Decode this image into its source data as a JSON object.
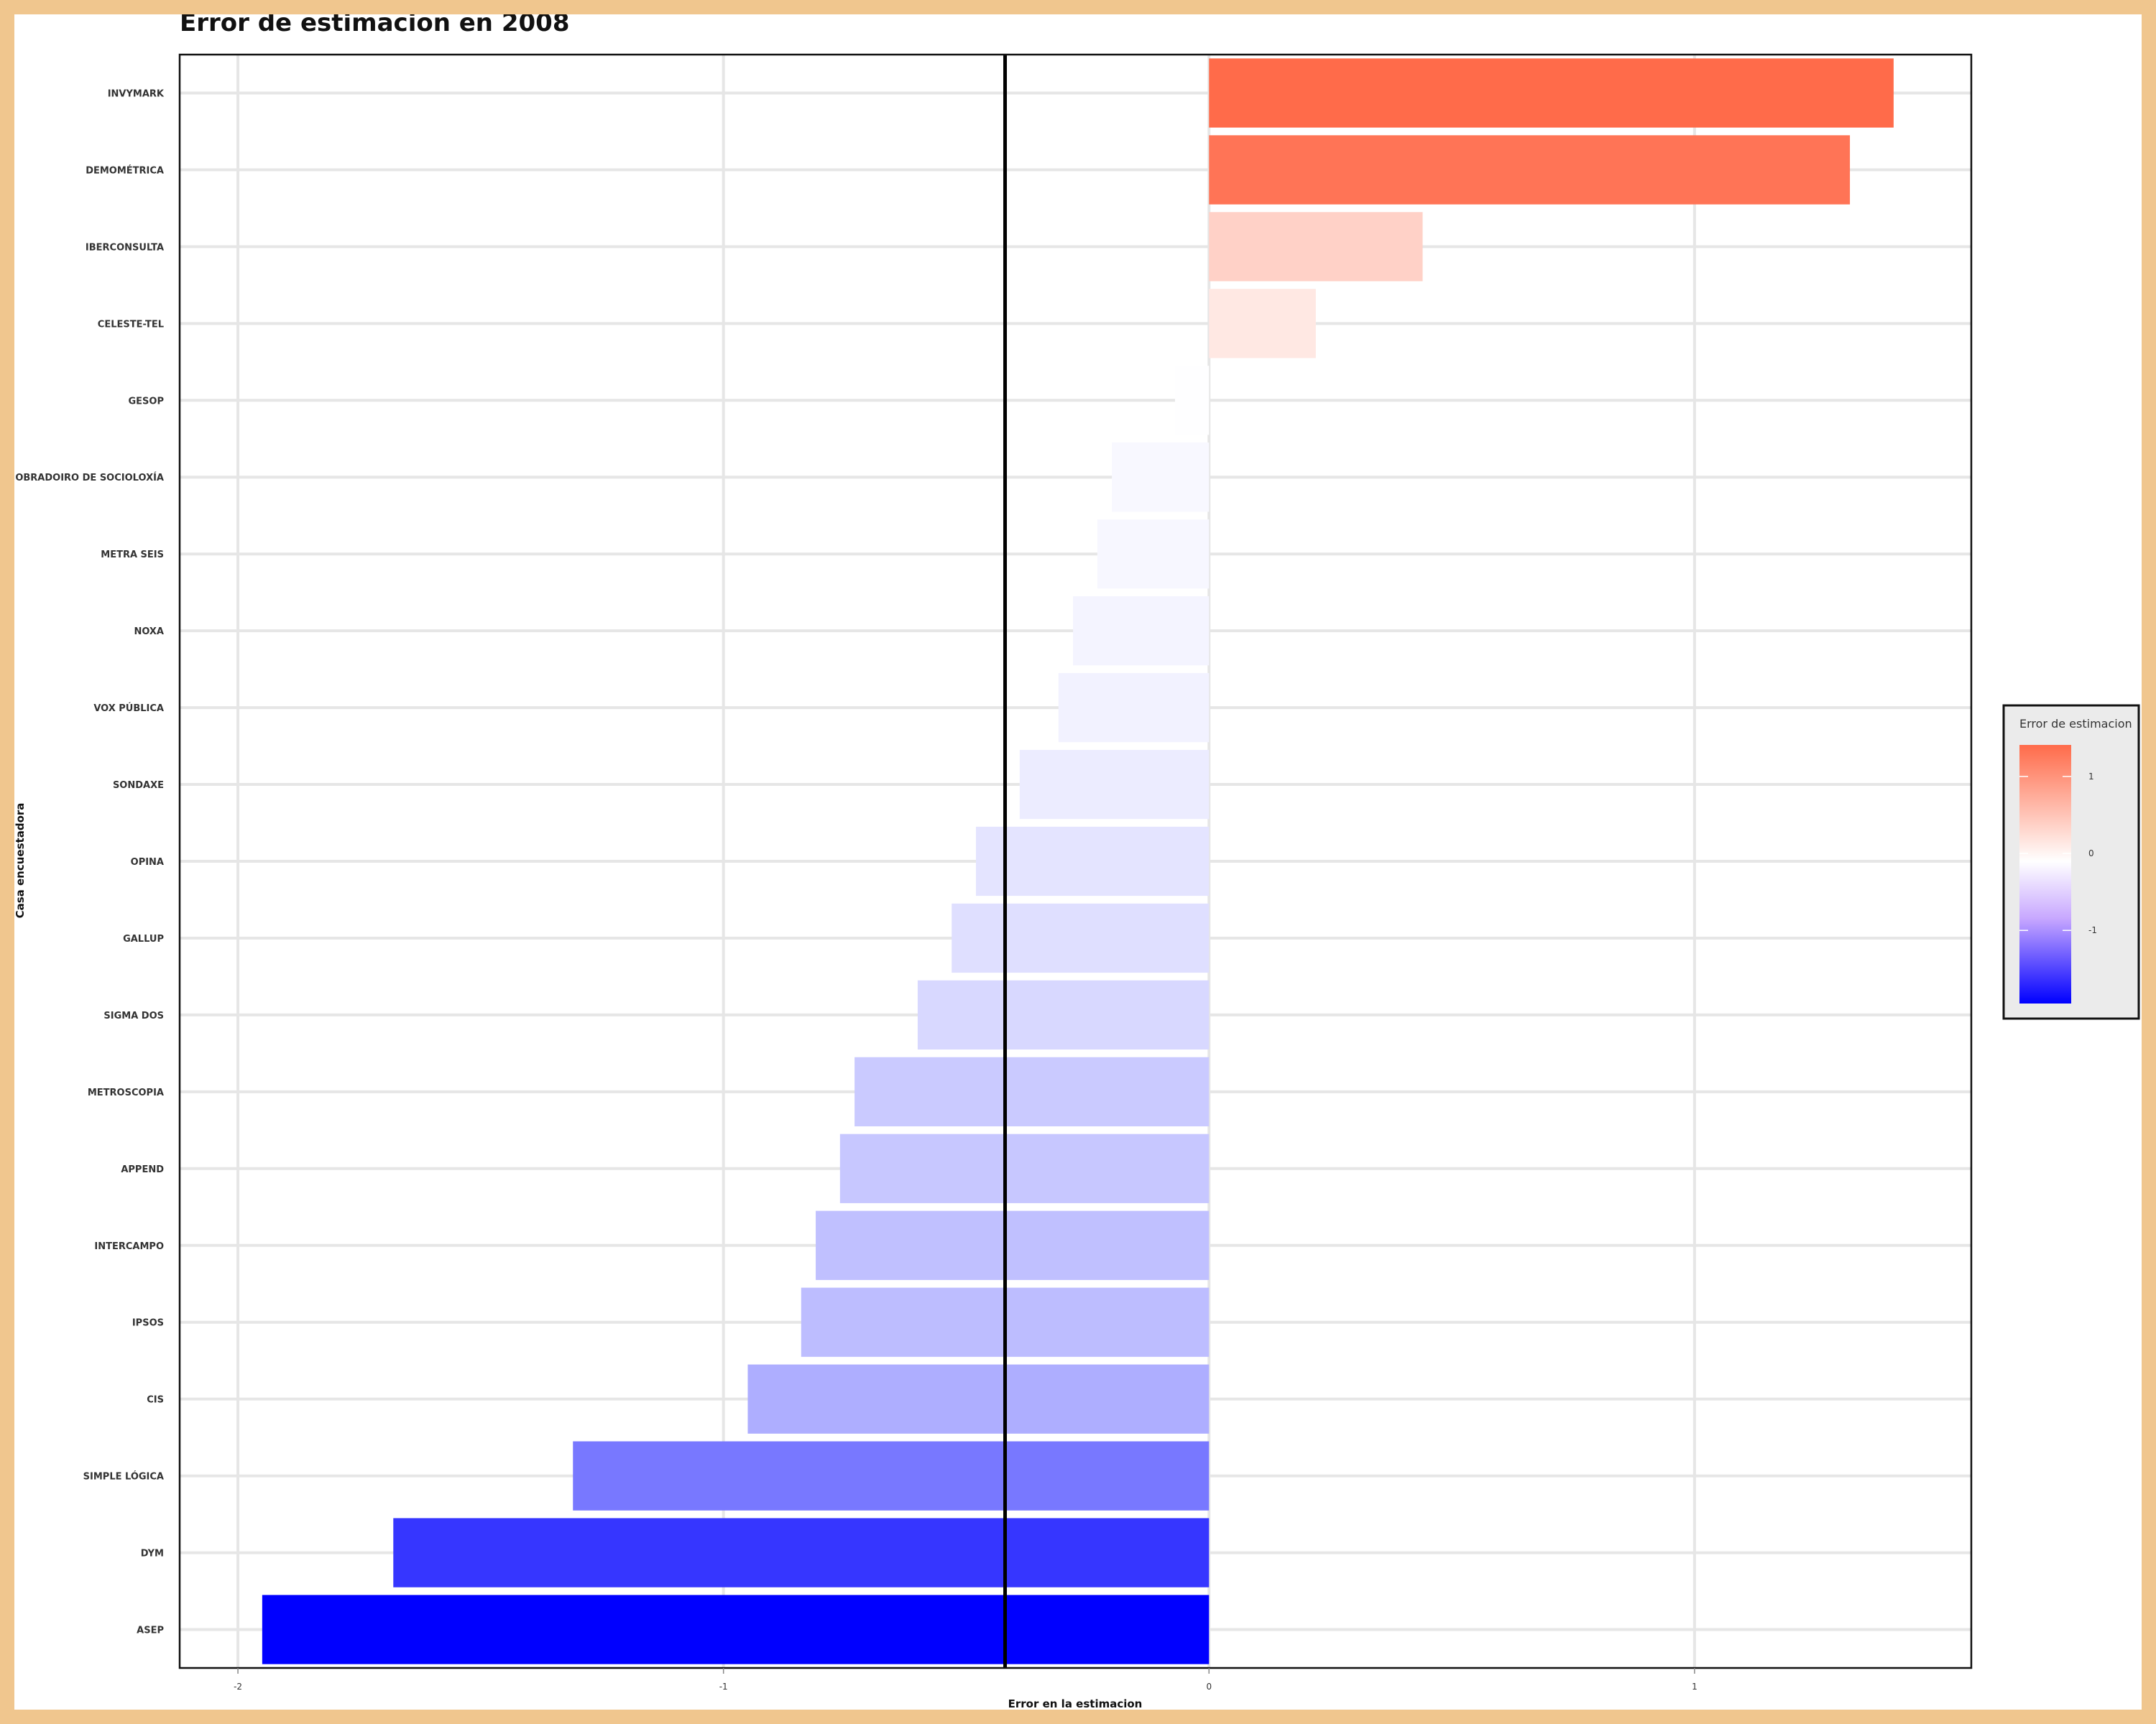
{
  "chart_data": {
    "type": "bar",
    "orientation": "horizontal",
    "title": "Error de estimacion en 2008",
    "xlabel": "Error en la estimacion",
    "ylabel": "Casa encuestadora",
    "categories": [
      "INVYMARK",
      "DEMOMÉTRICA",
      "IBERCONSULTA",
      "CELESTE-TEL",
      "GESOP",
      "OBRADOIRO DE SOCIOLOXÍA",
      "METRA SEIS",
      "NOXA",
      "VOX PÚBLICA",
      "SONDAXE",
      "OPINA",
      "GALLUP",
      "SIGMA DOS",
      "METROSCOPIA",
      "APPEND",
      "INTERCAMPO",
      "IPSOS",
      "CIS",
      "SIMPLE LÓGICA",
      "DYM",
      "ASEP"
    ],
    "values": [
      1.41,
      1.32,
      0.44,
      0.22,
      -0.07,
      -0.2,
      -0.23,
      -0.28,
      -0.31,
      -0.39,
      -0.48,
      -0.53,
      -0.6,
      -0.73,
      -0.76,
      -0.81,
      -0.84,
      -0.95,
      -1.31,
      -1.68,
      -1.95
    ],
    "reference_line": -0.42,
    "xlim": [
      -2.12,
      1.57
    ],
    "x_ticks": [
      {
        "value": -2,
        "label": "-2"
      },
      {
        "value": -1,
        "label": "-1"
      },
      {
        "value": 0,
        "label": "0"
      },
      {
        "value": 1,
        "label": "1"
      }
    ],
    "grid": true,
    "color_scale": {
      "low": "#0000FF",
      "mid": "#FFFFFF",
      "high": "#FF6B4A",
      "midpoint": 0
    },
    "legend": {
      "title": "Error de estimacion",
      "position": "right",
      "ticks": [
        {
          "value": 1,
          "label": "1"
        },
        {
          "value": 0,
          "label": "0"
        },
        {
          "value": -1,
          "label": "-1"
        }
      ]
    }
  }
}
